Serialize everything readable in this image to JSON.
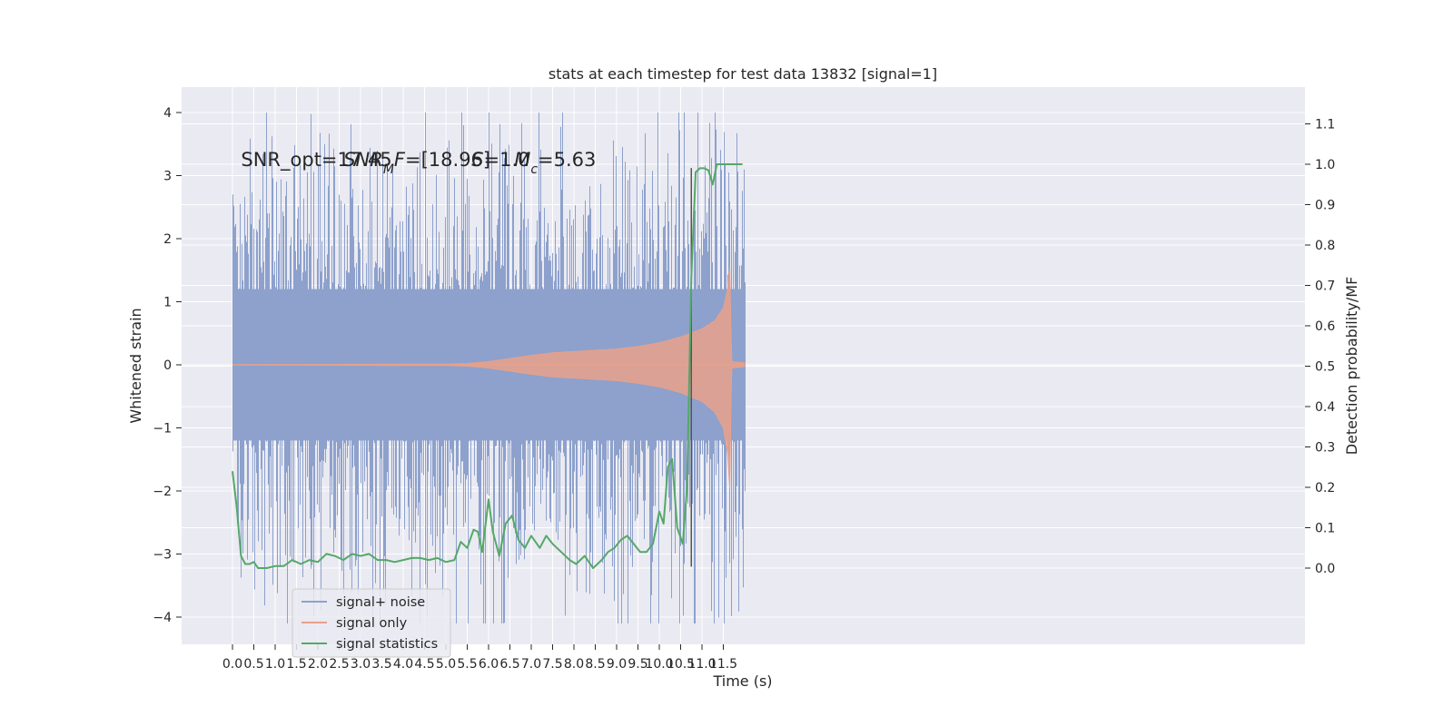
{
  "chart_data": {
    "type": "line",
    "title": "stats at each timestep for test data 13832 [signal=1]",
    "xlabel": "Time (s)",
    "ylabel_left": "Whitened strain",
    "ylabel_right": "Detection probability/MF",
    "xlim": [
      -0.25,
      12.95
    ],
    "ylim_left": [
      -4.45,
      4.4
    ],
    "x_ticks": [
      0.0,
      0.5,
      1.0,
      1.5,
      2.0,
      2.5,
      3.0,
      3.5,
      4.0,
      4.5,
      5.0,
      5.5,
      6.0,
      6.5,
      7.0,
      7.5,
      8.0,
      8.5,
      9.0,
      9.5,
      10.0,
      10.5,
      11.0,
      11.5
    ],
    "x_tick_labels": [
      "0.0",
      "0.5",
      "1.0",
      "1.5",
      "2.0",
      "2.5",
      "3.0",
      "3.5",
      "4.0",
      "4.5",
      "5.0",
      "5.5",
      "6.0",
      "6.5",
      "7.0",
      "7.5",
      "8.0",
      "8.5",
      "9.0",
      "9.5",
      "10.0",
      "10.5",
      "11.0",
      "11.5"
    ],
    "y_ticks_left": [
      -4,
      -3,
      -2,
      -1,
      0,
      1,
      2,
      3,
      4
    ],
    "y_tick_labels_left": [
      "−4",
      "−3",
      "−2",
      "−1",
      "0",
      "1",
      "2",
      "3",
      "4"
    ],
    "y_ticks_right": [
      0.0,
      0.1,
      0.2,
      0.3,
      0.4,
      0.5,
      0.6,
      0.7,
      0.8,
      0.9,
      1.0,
      1.1
    ],
    "y_tick_labels_right": [
      "0.0",
      "0.1",
      "0.2",
      "0.3",
      "0.4",
      "0.5",
      "0.6",
      "0.7",
      "0.8",
      "0.9",
      "1.0",
      "1.1"
    ],
    "grid": true,
    "legend_position": "lower-left",
    "annotations": [
      {
        "text": "SNR_opt=17.45",
        "x": 0.2
      },
      {
        "text": "SNR_MF=[18.96]",
        "x": 2.6
      },
      {
        "text": "S=1.0",
        "x": 5.6
      },
      {
        "text": "M_c=5.63",
        "x": 6.6
      }
    ],
    "annotation_y": 3.15,
    "marker_line": {
      "x": 10.75,
      "y_from": -3.2,
      "y_to": 3.12
    },
    "noise_envelope": {
      "x": [
        0.0,
        0.5,
        1.0,
        1.5,
        2.0,
        2.5,
        3.0,
        3.5,
        4.0,
        4.5,
        5.0,
        5.5,
        6.0,
        6.5,
        7.0,
        7.5,
        8.0,
        8.5,
        9.0,
        9.5,
        10.0,
        10.5,
        11.0,
        11.5,
        12.0
      ],
      "upper": [
        2.2,
        2.8,
        2.5,
        2.9,
        2.6,
        3.0,
        2.5,
        2.8,
        2.5,
        2.6,
        2.9,
        3.2,
        2.7,
        3.0,
        2.7,
        2.9,
        2.6,
        3.0,
        2.6,
        2.9,
        2.6,
        3.2,
        2.8,
        3.0,
        2.6
      ],
      "lower": [
        -2.3,
        -2.8,
        -2.6,
        -2.9,
        -2.5,
        -2.9,
        -2.6,
        -2.7,
        -2.6,
        -2.5,
        -2.9,
        -2.7,
        -3.0,
        -2.8,
        -2.6,
        -2.9,
        -2.6,
        -2.8,
        -2.8,
        -2.9,
        -2.6,
        -3.0,
        -2.7,
        -3.1,
        -2.6
      ]
    },
    "series": [
      {
        "name": "signal+ noise",
        "color": "#8da1cc",
        "x_start": 0.0,
        "x_end": 12.0,
        "amplitude_1sigma": 1.2
      },
      {
        "name": "signal only",
        "color": "#e8a18a",
        "x": [
          0.0,
          4.0,
          5.0,
          5.5,
          6.0,
          6.5,
          7.0,
          7.5,
          8.0,
          8.5,
          9.0,
          9.5,
          10.0,
          10.5,
          11.0,
          11.3,
          11.5,
          11.6,
          11.65,
          11.68,
          11.7,
          12.0
        ],
        "upper": [
          0.0,
          0.01,
          0.01,
          0.02,
          0.05,
          0.1,
          0.15,
          0.19,
          0.21,
          0.23,
          0.25,
          0.29,
          0.35,
          0.44,
          0.57,
          0.7,
          0.9,
          1.2,
          1.55,
          0.45,
          0.05,
          0.03
        ],
        "lower": [
          0.0,
          -0.01,
          -0.01,
          -0.02,
          -0.05,
          -0.1,
          -0.15,
          -0.19,
          -0.21,
          -0.23,
          -0.25,
          -0.29,
          -0.35,
          -0.44,
          -0.58,
          -0.75,
          -1.0,
          -1.4,
          -1.95,
          -0.5,
          -0.05,
          -0.03
        ]
      },
      {
        "name": "signal statistics",
        "color": "#55a868",
        "axis": "right",
        "x": [
          0.0,
          0.1,
          0.2,
          0.3,
          0.4,
          0.5,
          0.6,
          0.8,
          1.0,
          1.2,
          1.4,
          1.6,
          1.8,
          2.0,
          2.2,
          2.4,
          2.6,
          2.8,
          3.0,
          3.2,
          3.4,
          3.6,
          3.8,
          4.0,
          4.2,
          4.4,
          4.6,
          4.8,
          5.0,
          5.2,
          5.35,
          5.5,
          5.65,
          5.75,
          5.85,
          6.0,
          6.1,
          6.25,
          6.4,
          6.55,
          6.7,
          6.85,
          7.0,
          7.2,
          7.35,
          7.5,
          7.7,
          7.9,
          8.05,
          8.25,
          8.45,
          8.65,
          8.8,
          8.95,
          9.1,
          9.25,
          9.4,
          9.55,
          9.7,
          9.85,
          10.0,
          10.1,
          10.2,
          10.3,
          10.42,
          10.55,
          10.65,
          10.75,
          10.85,
          10.95,
          11.05,
          11.15,
          11.25,
          11.35,
          11.45,
          11.6,
          11.75,
          11.95
        ],
        "y": [
          0.24,
          0.15,
          0.03,
          0.01,
          0.01,
          0.015,
          0.0,
          0.0,
          0.005,
          0.005,
          0.02,
          0.01,
          0.02,
          0.015,
          0.035,
          0.03,
          0.02,
          0.035,
          0.03,
          0.035,
          0.02,
          0.02,
          0.015,
          0.02,
          0.025,
          0.025,
          0.02,
          0.025,
          0.015,
          0.02,
          0.065,
          0.05,
          0.095,
          0.09,
          0.04,
          0.17,
          0.09,
          0.03,
          0.11,
          0.13,
          0.07,
          0.05,
          0.08,
          0.05,
          0.08,
          0.06,
          0.04,
          0.02,
          0.01,
          0.03,
          0.0,
          0.02,
          0.04,
          0.05,
          0.07,
          0.08,
          0.06,
          0.04,
          0.04,
          0.06,
          0.14,
          0.11,
          0.25,
          0.27,
          0.1,
          0.06,
          0.2,
          0.72,
          0.98,
          0.99,
          0.99,
          0.985,
          0.95,
          1.0,
          1.0,
          1.0,
          1.0,
          1.0
        ]
      }
    ]
  },
  "colors": {
    "plot_background": "#eaeaf2",
    "grid": "#ffffff",
    "marker_line": "#555555"
  }
}
